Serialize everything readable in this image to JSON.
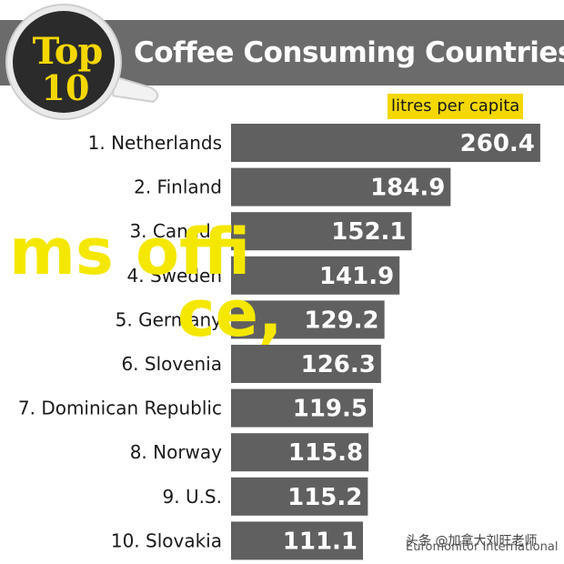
{
  "header": {
    "logo_line1": "Top",
    "logo_line2": "10",
    "title": "Coffee Consuming Countries"
  },
  "unit_label": "litres per capita",
  "watermark": {
    "line1": "ms offi",
    "line2": "ce,"
  },
  "source": "Euromonitor International",
  "credit": "头条 @加拿大刘旺老师",
  "colors": {
    "bar": "#606060",
    "band": "#6b6b6b",
    "accent_yellow": "#f4d800",
    "logo_dark": "#2b2b2b",
    "logo_text": "#f4d800"
  },
  "chart_data": {
    "type": "bar",
    "orientation": "horizontal",
    "title": "Coffee Consuming Countries",
    "unit": "litres per capita",
    "categories": [
      "1. Netherlands",
      "2. Finland",
      "3. Canada",
      "4. Sweden",
      "5. Germany",
      "6. Slovenia",
      "7. Dominican Republic",
      "8. Norway",
      "9. U.S.",
      "10. Slovakia"
    ],
    "values": [
      260.4,
      184.9,
      152.1,
      141.9,
      129.2,
      126.3,
      119.5,
      115.8,
      115.2,
      111.1
    ],
    "value_labels": [
      "260.4",
      "184.9",
      "152.1",
      "141.9",
      "129.2",
      "126.3",
      "119.5",
      "115.8",
      "115.2",
      "111.1"
    ],
    "xlim": [
      0,
      262
    ],
    "grid": false,
    "legend": "none"
  }
}
